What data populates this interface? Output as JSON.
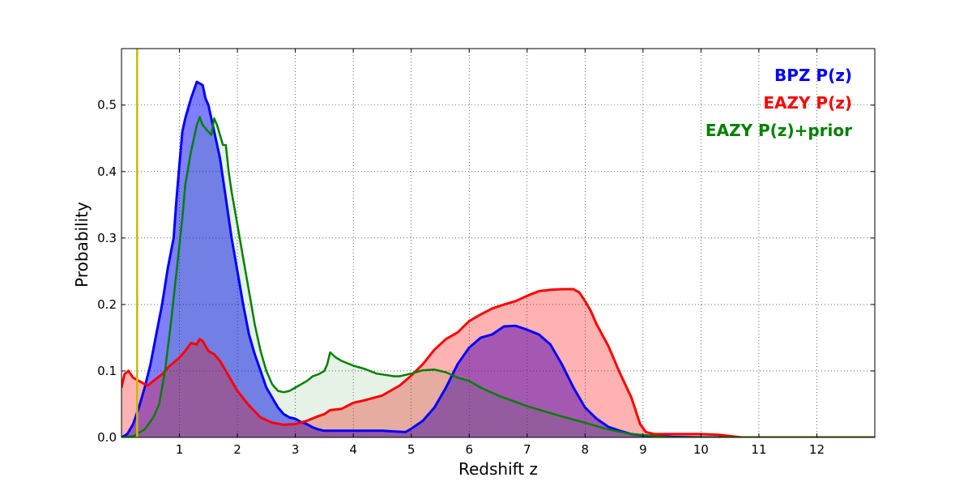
{
  "chart_data": {
    "type": "area",
    "title": "",
    "xlabel": "Redshift z",
    "ylabel": "Probability",
    "xlim": [
      0,
      13
    ],
    "ylim": [
      0,
      0.585
    ],
    "x_ticks": [
      1,
      2,
      3,
      4,
      5,
      6,
      7,
      8,
      9,
      10,
      11,
      12
    ],
    "y_ticks": [
      0.0,
      0.1,
      0.2,
      0.3,
      0.4,
      0.5
    ],
    "y_tick_labels": [
      "0.0",
      "0.1",
      "0.2",
      "0.3",
      "0.4",
      "0.5"
    ],
    "grid": true,
    "legend_position": "top-right",
    "vertical_line": {
      "x": 0.27,
      "color": "#bfbf00"
    },
    "series": [
      {
        "name": "BPZ P(z)",
        "color": "#0000ff",
        "fill": "#0000ff",
        "fill_opacity": 0.5,
        "points": [
          [
            0,
            0
          ],
          [
            0.1,
            0.005
          ],
          [
            0.2,
            0.02
          ],
          [
            0.3,
            0.045
          ],
          [
            0.4,
            0.075
          ],
          [
            0.5,
            0.11
          ],
          [
            0.6,
            0.155
          ],
          [
            0.7,
            0.2
          ],
          [
            0.8,
            0.255
          ],
          [
            0.9,
            0.3
          ],
          [
            0.95,
            0.36
          ],
          [
            1.0,
            0.41
          ],
          [
            1.05,
            0.46
          ],
          [
            1.1,
            0.48
          ],
          [
            1.2,
            0.51
          ],
          [
            1.3,
            0.535
          ],
          [
            1.4,
            0.53
          ],
          [
            1.45,
            0.51
          ],
          [
            1.5,
            0.5
          ],
          [
            1.6,
            0.46
          ],
          [
            1.7,
            0.42
          ],
          [
            1.8,
            0.36
          ],
          [
            1.9,
            0.3
          ],
          [
            2.0,
            0.25
          ],
          [
            2.1,
            0.2
          ],
          [
            2.2,
            0.155
          ],
          [
            2.3,
            0.125
          ],
          [
            2.4,
            0.1
          ],
          [
            2.5,
            0.075
          ],
          [
            2.6,
            0.06
          ],
          [
            2.7,
            0.045
          ],
          [
            2.8,
            0.035
          ],
          [
            2.9,
            0.03
          ],
          [
            3.0,
            0.028
          ],
          [
            3.1,
            0.023
          ],
          [
            3.2,
            0.02
          ],
          [
            3.3,
            0.015
          ],
          [
            3.4,
            0.012
          ],
          [
            3.5,
            0.01
          ],
          [
            3.7,
            0.01
          ],
          [
            4.0,
            0.01
          ],
          [
            4.5,
            0.01
          ],
          [
            4.7,
            0.009
          ],
          [
            4.9,
            0.008
          ],
          [
            5.0,
            0.013
          ],
          [
            5.2,
            0.025
          ],
          [
            5.4,
            0.045
          ],
          [
            5.6,
            0.075
          ],
          [
            5.8,
            0.11
          ],
          [
            6.0,
            0.135
          ],
          [
            6.2,
            0.15
          ],
          [
            6.4,
            0.155
          ],
          [
            6.6,
            0.167
          ],
          [
            6.8,
            0.168
          ],
          [
            7.0,
            0.162
          ],
          [
            7.2,
            0.155
          ],
          [
            7.4,
            0.14
          ],
          [
            7.6,
            0.11
          ],
          [
            7.8,
            0.075
          ],
          [
            8.0,
            0.045
          ],
          [
            8.2,
            0.028
          ],
          [
            8.4,
            0.016
          ],
          [
            8.6,
            0.01
          ],
          [
            8.8,
            0.005
          ],
          [
            9.0,
            0.003
          ],
          [
            9.5,
            0.001
          ],
          [
            10,
            0
          ],
          [
            13,
            0
          ]
        ]
      },
      {
        "name": "EAZY P(z)",
        "color": "#ff0000",
        "fill": "#ff0000",
        "fill_opacity": 0.3,
        "points": [
          [
            0,
            0.075
          ],
          [
            0.05,
            0.095
          ],
          [
            0.12,
            0.1
          ],
          [
            0.2,
            0.09
          ],
          [
            0.3,
            0.085
          ],
          [
            0.45,
            0.078
          ],
          [
            0.55,
            0.085
          ],
          [
            0.7,
            0.095
          ],
          [
            0.8,
            0.105
          ],
          [
            1.0,
            0.12
          ],
          [
            1.1,
            0.13
          ],
          [
            1.2,
            0.142
          ],
          [
            1.3,
            0.14
          ],
          [
            1.35,
            0.148
          ],
          [
            1.4,
            0.145
          ],
          [
            1.5,
            0.13
          ],
          [
            1.6,
            0.125
          ],
          [
            1.7,
            0.115
          ],
          [
            1.8,
            0.1
          ],
          [
            1.9,
            0.085
          ],
          [
            2.0,
            0.07
          ],
          [
            2.2,
            0.048
          ],
          [
            2.4,
            0.03
          ],
          [
            2.6,
            0.022
          ],
          [
            2.8,
            0.019
          ],
          [
            3.0,
            0.02
          ],
          [
            3.2,
            0.025
          ],
          [
            3.4,
            0.032
          ],
          [
            3.5,
            0.035
          ],
          [
            3.6,
            0.041
          ],
          [
            3.8,
            0.043
          ],
          [
            4.0,
            0.052
          ],
          [
            4.2,
            0.056
          ],
          [
            4.5,
            0.063
          ],
          [
            4.8,
            0.078
          ],
          [
            5.0,
            0.093
          ],
          [
            5.2,
            0.11
          ],
          [
            5.4,
            0.132
          ],
          [
            5.6,
            0.148
          ],
          [
            5.8,
            0.158
          ],
          [
            6.0,
            0.175
          ],
          [
            6.2,
            0.185
          ],
          [
            6.4,
            0.194
          ],
          [
            6.6,
            0.2
          ],
          [
            6.8,
            0.205
          ],
          [
            7.0,
            0.213
          ],
          [
            7.2,
            0.22
          ],
          [
            7.4,
            0.222
          ],
          [
            7.6,
            0.223
          ],
          [
            7.8,
            0.223
          ],
          [
            7.9,
            0.218
          ],
          [
            8.0,
            0.205
          ],
          [
            8.1,
            0.19
          ],
          [
            8.2,
            0.17
          ],
          [
            8.4,
            0.138
          ],
          [
            8.6,
            0.097
          ],
          [
            8.8,
            0.06
          ],
          [
            8.95,
            0.02
          ],
          [
            9.05,
            0.008
          ],
          [
            9.2,
            0.005
          ],
          [
            9.5,
            0.005
          ],
          [
            10.0,
            0.005
          ],
          [
            10.3,
            0.004
          ],
          [
            10.5,
            0.002
          ],
          [
            10.7,
            0
          ],
          [
            13,
            0
          ]
        ]
      },
      {
        "name": "EAZY P(z)+prior",
        "color": "#008000",
        "fill": "#008000",
        "fill_opacity": 0.1,
        "points": [
          [
            0,
            0
          ],
          [
            0.2,
            0.002
          ],
          [
            0.4,
            0.012
          ],
          [
            0.55,
            0.03
          ],
          [
            0.65,
            0.05
          ],
          [
            0.75,
            0.1
          ],
          [
            0.85,
            0.17
          ],
          [
            0.95,
            0.25
          ],
          [
            1.05,
            0.33
          ],
          [
            1.1,
            0.38
          ],
          [
            1.2,
            0.43
          ],
          [
            1.3,
            0.47
          ],
          [
            1.35,
            0.482
          ],
          [
            1.4,
            0.47
          ],
          [
            1.5,
            0.46
          ],
          [
            1.55,
            0.455
          ],
          [
            1.6,
            0.48
          ],
          [
            1.65,
            0.47
          ],
          [
            1.75,
            0.44
          ],
          [
            1.8,
            0.44
          ],
          [
            1.85,
            0.4
          ],
          [
            1.9,
            0.37
          ],
          [
            2.0,
            0.32
          ],
          [
            2.1,
            0.27
          ],
          [
            2.2,
            0.22
          ],
          [
            2.3,
            0.17
          ],
          [
            2.4,
            0.13
          ],
          [
            2.5,
            0.1
          ],
          [
            2.6,
            0.08
          ],
          [
            2.7,
            0.07
          ],
          [
            2.8,
            0.068
          ],
          [
            2.9,
            0.07
          ],
          [
            3.0,
            0.075
          ],
          [
            3.2,
            0.085
          ],
          [
            3.3,
            0.092
          ],
          [
            3.4,
            0.095
          ],
          [
            3.5,
            0.1
          ],
          [
            3.55,
            0.11
          ],
          [
            3.6,
            0.128
          ],
          [
            3.7,
            0.12
          ],
          [
            3.8,
            0.115
          ],
          [
            4.0,
            0.108
          ],
          [
            4.2,
            0.103
          ],
          [
            4.4,
            0.096
          ],
          [
            4.7,
            0.092
          ],
          [
            4.8,
            0.092
          ],
          [
            5.0,
            0.096
          ],
          [
            5.2,
            0.101
          ],
          [
            5.4,
            0.102
          ],
          [
            5.6,
            0.098
          ],
          [
            5.8,
            0.09
          ],
          [
            6.0,
            0.085
          ],
          [
            6.2,
            0.075
          ],
          [
            6.5,
            0.063
          ],
          [
            7.0,
            0.047
          ],
          [
            7.5,
            0.034
          ],
          [
            8.0,
            0.022
          ],
          [
            8.4,
            0.012
          ],
          [
            8.8,
            0.005
          ],
          [
            9.2,
            0.002
          ],
          [
            9.5,
            0
          ],
          [
            13,
            0
          ]
        ]
      }
    ]
  }
}
